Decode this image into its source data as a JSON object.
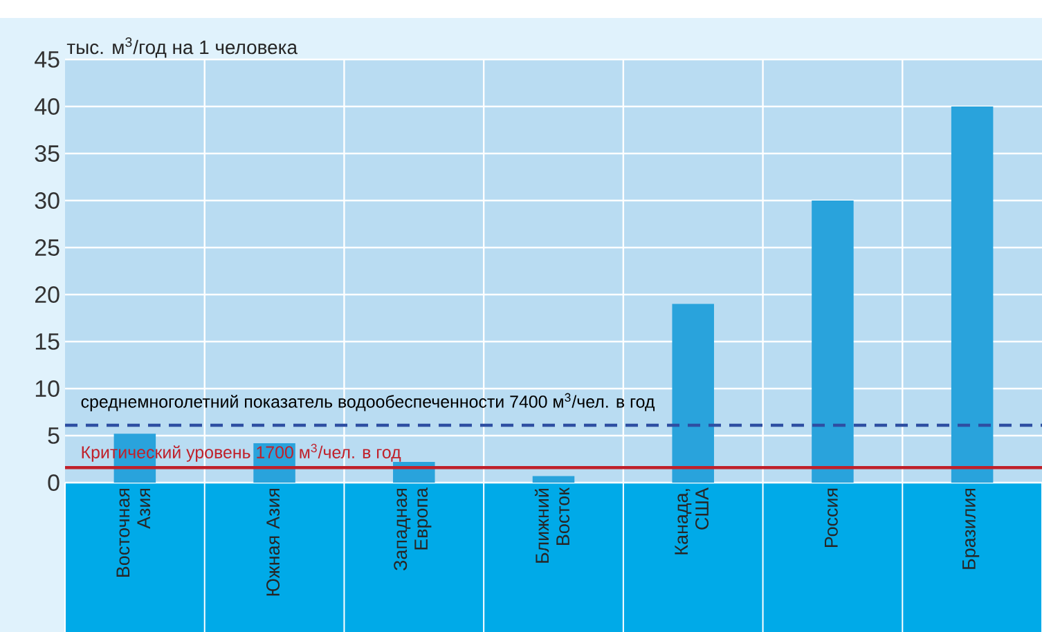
{
  "chart_data": {
    "type": "bar",
    "ylabel": "тыс. м$^{3}$/год на 1 человека",
    "categories": [
      "Восточная Азия",
      "Южная Азия",
      "Западная Европа",
      "Ближний Восток",
      "Канада, США",
      "Россия",
      "Бразилия"
    ],
    "values": [
      5.2,
      4.2,
      2.2,
      0.7,
      19,
      30,
      40
    ],
    "color": "#29a3dc",
    "ylim": [
      0,
      45
    ],
    "yticks": [
      0,
      5,
      10,
      15,
      20,
      25,
      30,
      35,
      40,
      45
    ],
    "grid": true,
    "ref_lines": [
      {
        "axis": "y",
        "value": 6.1,
        "label": "среднемноголетний показатель водообеспеченности 7400 м$^{3}$/чел. в год",
        "color": "#2e4fa3",
        "line_style": "dashed"
      },
      {
        "axis": "y",
        "value": 1.6,
        "label": "Критический уровень 1700 м$^{3}$/чел. в год",
        "color": "#c0202a",
        "line_style": "solid"
      }
    ]
  }
}
